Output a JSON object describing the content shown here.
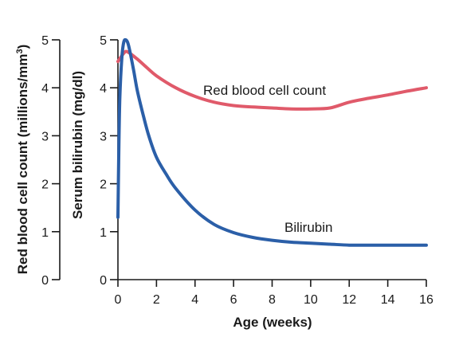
{
  "chart_data": {
    "type": "line",
    "xlabel": "Age (weeks)",
    "x_ticks": [
      0,
      2,
      4,
      6,
      8,
      10,
      12,
      14,
      16
    ],
    "xlim": [
      0,
      16
    ],
    "y_axes": [
      {
        "id": "rbc",
        "label": "Red blood cell count (millions/mm",
        "label_sup": "3",
        "label_tail": ")",
        "ylim": [
          0,
          5
        ],
        "ticks": [
          0,
          1,
          2,
          3,
          4,
          5
        ]
      },
      {
        "id": "bili",
        "label": "Serum bilirubin (mg/dl)",
        "ylim": [
          0,
          5
        ],
        "ticks": [
          0,
          1,
          2,
          3,
          4,
          5
        ]
      }
    ],
    "series": [
      {
        "name": "Red blood cell count",
        "axis": "rbc",
        "color": "#e05a6a",
        "x": [
          0,
          0.3,
          0.5,
          1,
          1.5,
          2,
          3,
          4,
          5,
          6,
          7,
          8,
          9,
          10,
          11,
          12,
          13,
          14,
          15,
          16
        ],
        "y": [
          4.55,
          4.72,
          4.75,
          4.6,
          4.42,
          4.25,
          4.0,
          3.82,
          3.7,
          3.63,
          3.6,
          3.58,
          3.56,
          3.56,
          3.58,
          3.7,
          3.78,
          3.85,
          3.93,
          4.0
        ]
      },
      {
        "name": "Bilirubin",
        "axis": "bili",
        "color": "#2b5fa8",
        "x": [
          0,
          0.05,
          0.1,
          0.2,
          0.3,
          0.4,
          0.5,
          0.6,
          0.8,
          1.0,
          1.3,
          1.6,
          2.0,
          2.5,
          3,
          4,
          5,
          6,
          7,
          8,
          9,
          10,
          11,
          12,
          13,
          14,
          15,
          16
        ],
        "y": [
          1.3,
          2.8,
          3.8,
          4.6,
          4.95,
          5.0,
          4.95,
          4.8,
          4.4,
          3.95,
          3.45,
          3.0,
          2.55,
          2.2,
          1.9,
          1.45,
          1.15,
          0.98,
          0.88,
          0.82,
          0.78,
          0.76,
          0.74,
          0.72,
          0.72,
          0.72,
          0.72,
          0.72
        ]
      }
    ]
  }
}
